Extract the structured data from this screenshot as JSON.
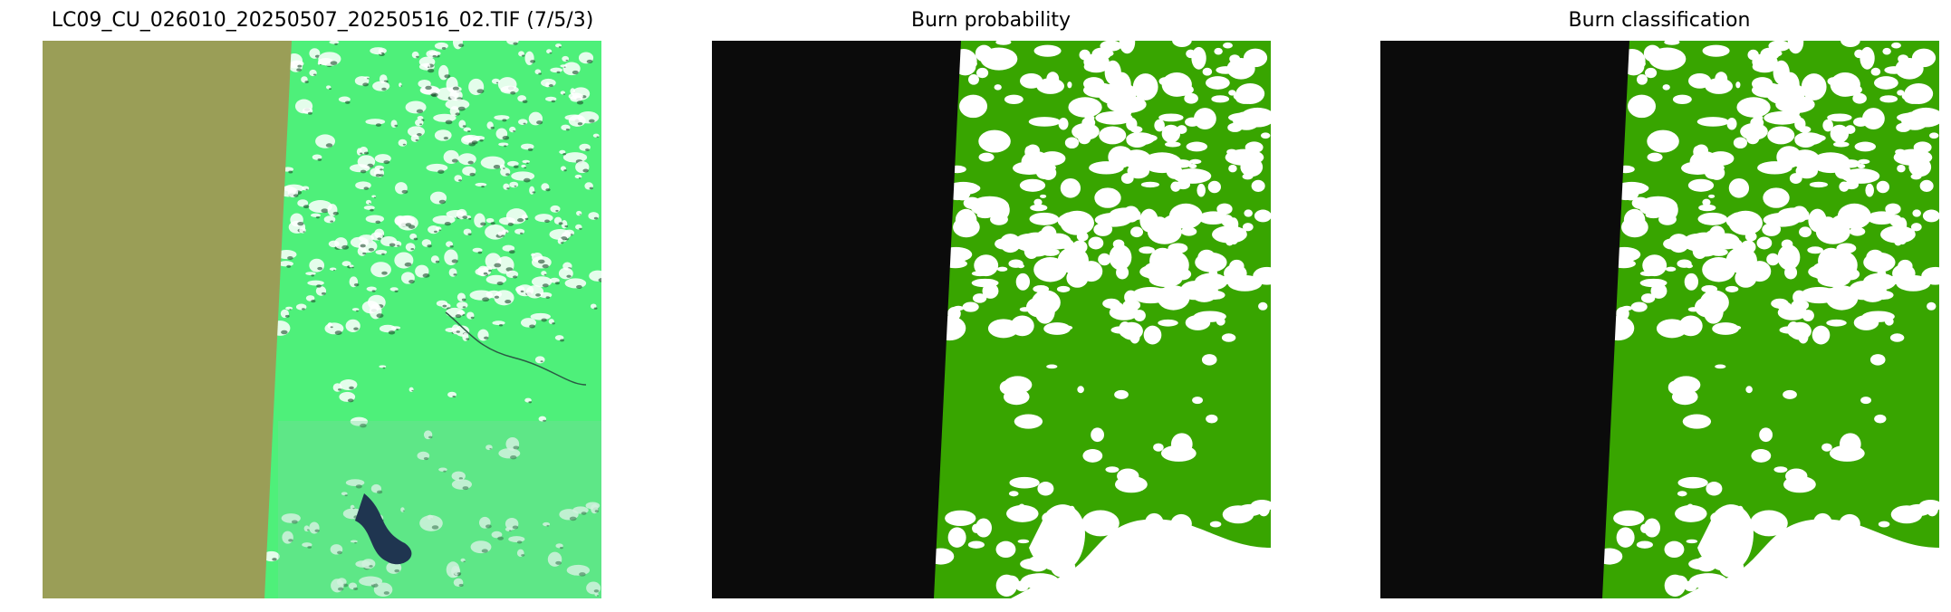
{
  "panels": [
    {
      "title": "LC09_CU_026010_20250507_20250516_02.TIF (7/5/3)",
      "kind": "rgb-composite"
    },
    {
      "title": "Burn probability",
      "kind": "probability-map"
    },
    {
      "title": "Burn classification",
      "kind": "classification-map"
    }
  ],
  "colors": {
    "nodata_composite": "#9a9e57",
    "vegetation_composite": "#4ef07a",
    "water_composite": "#1f3550",
    "nodata_map": "#0b0b0b",
    "unburned": "#38a500",
    "masked": "#ffffff"
  }
}
